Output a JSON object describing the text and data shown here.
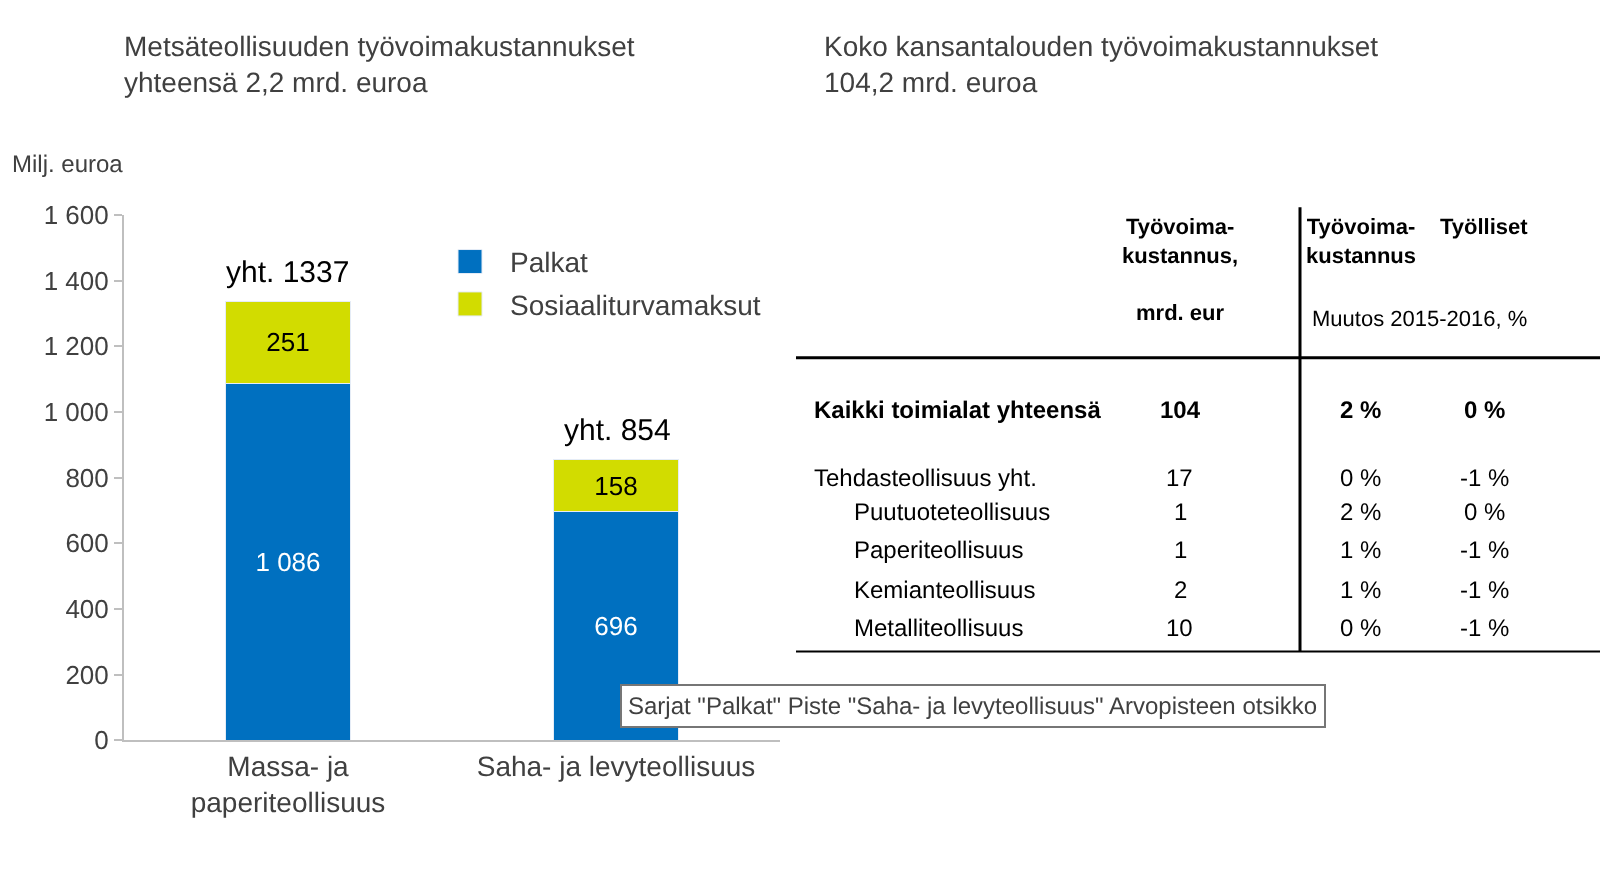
{
  "chart_data": [
    {
      "type": "bar",
      "title": "Metsäteollisuuden työvoimakustannukset\nyhteensä 2,2 mrd. euroa",
      "ylabel": "Milj. euroa",
      "categories": [
        "Massa- ja\npaperiteollisuus",
        "Saha- ja levyteollisuus"
      ],
      "stacked": true,
      "series": [
        {
          "name": "Palkat",
          "color": "#0070c0",
          "values": [
            1086,
            696
          ],
          "value_labels": [
            "1 086",
            "696"
          ]
        },
        {
          "name": "Sosiaaliturvamaksut",
          "color": "#d2dc00",
          "values": [
            251,
            158
          ],
          "value_labels": [
            "251",
            "158"
          ]
        }
      ],
      "totals": [
        "yht. 1337",
        "yht. 854"
      ],
      "ylim": [
        0,
        1600
      ],
      "yticks": [
        0,
        200,
        400,
        600,
        800,
        {
          "value": 1000,
          "label": "1 000"
        },
        {
          "value": 1200,
          "label": "1 200"
        },
        {
          "value": 1400,
          "label": "1 400"
        },
        {
          "value": 1600,
          "label": "1 600"
        }
      ],
      "legend": "top right",
      "annotations": [
        "Sarjat \"Palkat\" Piste \"Saha- ja levyteollisuus\" Arvopisteen otsikko"
      ]
    },
    {
      "type": "other",
      "data_labels": true,
      "title": "Koko kansantalouden työvoimakustannukset\n104,2 mrd. euroa",
      "subtitle": "Muutos 2015-2016, %",
      "categories": [
        "Kaikki toimialat yhteensä",
        "Tehdasteollisuus yht.",
        "Puutuoteteollisuus",
        "Paperiteollisuus",
        "Kemianteollisuus",
        "Metalliteollisuus"
      ],
      "series": [
        {
          "name": "Työvoima-\nkustannus,\n\nmrd. eur",
          "values": [
            104,
            17,
            1,
            1,
            2,
            10
          ]
        },
        {
          "name": "Työvoima-\nkustannus",
          "values": [
            2,
            0,
            2,
            1,
            1,
            0
          ],
          "value_labels": [
            "2 %",
            "0 %",
            "2 %",
            "1 %",
            "1 %",
            "0 %"
          ]
        },
        {
          "name": "Työlliset",
          "values": [
            0,
            -1,
            0,
            -1,
            -1,
            -1
          ],
          "value_labels": [
            "0 %",
            "-1 %",
            "0 %",
            "-1 %",
            "-1 %",
            "-1 %"
          ]
        }
      ]
    }
  ]
}
